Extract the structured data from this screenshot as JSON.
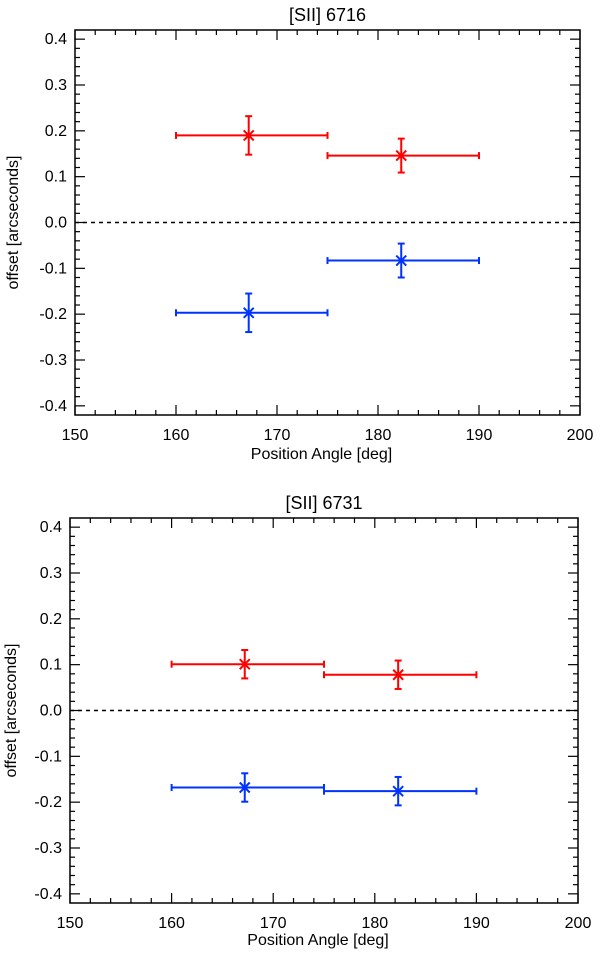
{
  "chart_data": [
    {
      "type": "scatter",
      "title": "[SII] 6716",
      "xlabel": "Position Angle [deg]",
      "ylabel": "offset [arcseconds]",
      "xlim": [
        150,
        200
      ],
      "ylim": [
        -0.42,
        0.42
      ],
      "xticks": [
        150,
        160,
        170,
        180,
        190,
        200
      ],
      "xtick_labels": [
        "150",
        "160",
        "170",
        "180",
        "190",
        "200"
      ],
      "yticks": [
        -0.4,
        -0.3,
        -0.2,
        -0.1,
        0.0,
        0.1,
        0.2,
        0.3,
        0.4
      ],
      "ytick_labels": [
        "-0.4",
        "-0.3",
        "-0.2",
        "-0.1",
        "0.0",
        "0.1",
        "0.2",
        "0.3",
        "0.4"
      ],
      "reference_line": {
        "y": 0.0,
        "style": "dashed"
      },
      "series": [
        {
          "name": "red",
          "color": "#ff0000",
          "marker": "x",
          "points": [
            {
              "x": 167.2,
              "y": 0.19,
              "xmin": 160.0,
              "xmax": 175.0,
              "yerr": 0.042
            },
            {
              "x": 182.3,
              "y": 0.146,
              "xmin": 175.0,
              "xmax": 190.0,
              "yerr": 0.037
            }
          ]
        },
        {
          "name": "blue",
          "color": "#0033ff",
          "marker": "x",
          "points": [
            {
              "x": 167.2,
              "y": -0.197,
              "xmin": 160.0,
              "xmax": 175.0,
              "yerr": 0.042
            },
            {
              "x": 182.3,
              "y": -0.083,
              "xmin": 175.0,
              "xmax": 190.0,
              "yerr": 0.037
            }
          ]
        }
      ]
    },
    {
      "type": "scatter",
      "title": "[SII] 6731",
      "xlabel": "Position Angle [deg]",
      "ylabel": "offset [arcseconds]",
      "xlim": [
        150,
        200
      ],
      "ylim": [
        -0.42,
        0.42
      ],
      "xticks": [
        150,
        160,
        170,
        180,
        190,
        200
      ],
      "xtick_labels": [
        "150",
        "160",
        "170",
        "180",
        "190",
        "200"
      ],
      "yticks": [
        -0.4,
        -0.3,
        -0.2,
        -0.1,
        0.0,
        0.1,
        0.2,
        0.3,
        0.4
      ],
      "ytick_labels": [
        "-0.4",
        "-0.3",
        "-0.2",
        "-0.1",
        "0.0",
        "0.1",
        "0.2",
        "0.3",
        "0.4"
      ],
      "reference_line": {
        "y": 0.0,
        "style": "dashed"
      },
      "series": [
        {
          "name": "red",
          "color": "#ff0000",
          "marker": "x",
          "points": [
            {
              "x": 167.2,
              "y": 0.101,
              "xmin": 160.0,
              "xmax": 175.0,
              "yerr": 0.031
            },
            {
              "x": 182.3,
              "y": 0.078,
              "xmin": 175.0,
              "xmax": 190.0,
              "yerr": 0.031
            }
          ]
        },
        {
          "name": "blue",
          "color": "#0033ff",
          "marker": "x",
          "points": [
            {
              "x": 167.2,
              "y": -0.168,
              "xmin": 160.0,
              "xmax": 175.0,
              "yerr": 0.031
            },
            {
              "x": 182.3,
              "y": -0.176,
              "xmin": 175.0,
              "xmax": 190.0,
              "yerr": 0.031
            }
          ]
        }
      ]
    }
  ]
}
